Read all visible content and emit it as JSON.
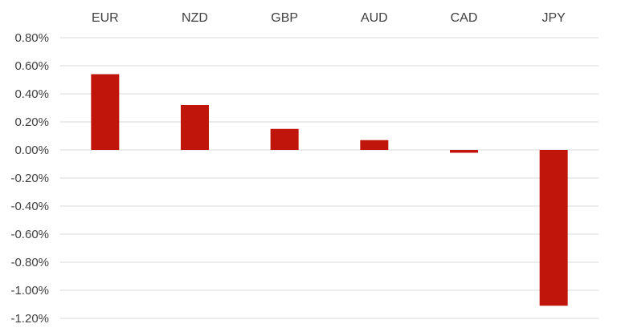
{
  "chart_data": {
    "type": "bar",
    "categories": [
      "EUR",
      "NZD",
      "GBP",
      "AUD",
      "CAD",
      "JPY"
    ],
    "values": [
      0.54,
      0.32,
      0.15,
      0.07,
      -0.02,
      -1.11
    ],
    "value_unit": "%",
    "ylim": [
      -1.2,
      0.8
    ],
    "y_ticks": [
      "0.80%",
      "0.60%",
      "0.40%",
      "0.20%",
      "0.00%",
      "-0.20%",
      "-0.40%",
      "-0.60%",
      "-0.80%",
      "-1.00%",
      "-1.20%"
    ],
    "category_axis_position": "top",
    "grid": true,
    "legend": "none",
    "bar_color": "#c0150a",
    "title": "",
    "xlabel": "",
    "ylabel": ""
  }
}
